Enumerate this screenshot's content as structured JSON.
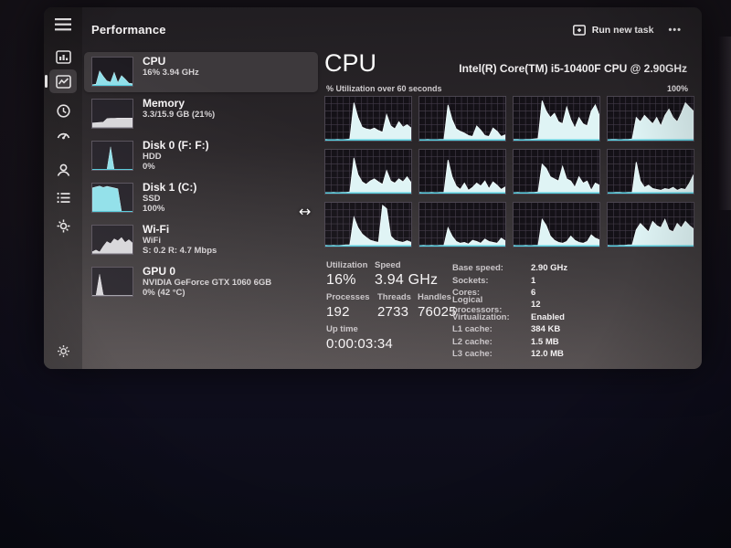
{
  "window": {
    "page_title": "Performance",
    "run_new_task_label": "Run new task",
    "more_label": "•••",
    "cursor_glyph": "↔"
  },
  "sidebar": {
    "items": [
      {
        "name": "menu",
        "icon": "hamburger-icon"
      },
      {
        "name": "processes",
        "icon": "processes-icon"
      },
      {
        "name": "performance",
        "icon": "performance-icon",
        "active": true
      },
      {
        "name": "app-history",
        "icon": "history-icon"
      },
      {
        "name": "startup-apps",
        "icon": "startup-icon"
      },
      {
        "name": "users",
        "icon": "users-icon"
      },
      {
        "name": "details",
        "icon": "details-icon"
      },
      {
        "name": "services",
        "icon": "services-icon"
      },
      {
        "name": "settings",
        "icon": "gear-icon"
      }
    ]
  },
  "perf_list": [
    {
      "title": "CPU",
      "line1": "16% 3.94 GHz",
      "line2": ""
    },
    {
      "title": "Memory",
      "line1": "3.3/15.9 GB (21%)",
      "line2": ""
    },
    {
      "title": "Disk 0 (F: F:)",
      "line1": "HDD",
      "line2": "0%"
    },
    {
      "title": "Disk 1 (C:)",
      "line1": "SSD",
      "line2": "100%"
    },
    {
      "title": "Wi-Fi",
      "line1": "WiFi",
      "line2": "S: 0.2 R: 4.7 Mbps"
    },
    {
      "title": "GPU 0",
      "line1": "NVIDIA GeForce GTX 1060 6GB",
      "line2": "0% (42 °C)"
    }
  ],
  "main": {
    "title": "CPU",
    "cpu_name": "Intel(R) Core(TM) i5-10400F CPU @ 2.90GHz",
    "graph_caption": "% Utilization over 60 seconds",
    "scale_label": "100%",
    "stats_left": [
      {
        "label": "Utilization",
        "value": "16%"
      },
      {
        "label": "Speed",
        "value": "3.94 GHz"
      },
      {
        "label": "Processes",
        "value": "192"
      },
      {
        "label": "Threads",
        "value": "2733"
      },
      {
        "label": "Handles",
        "value": "76025"
      },
      {
        "label": "Up time",
        "value": "0:00:03:34"
      }
    ],
    "stats_right": [
      {
        "label": "Base speed:",
        "value": "2.90 GHz"
      },
      {
        "label": "Sockets:",
        "value": "1"
      },
      {
        "label": "Cores:",
        "value": "6"
      },
      {
        "label": "Logical processors:",
        "value": "12"
      },
      {
        "label": "Virtualization:",
        "value": "Enabled"
      },
      {
        "label": "L1 cache:",
        "value": "384 KB"
      },
      {
        "label": "L2 cache:",
        "value": "1.5 MB"
      },
      {
        "label": "L3 cache:",
        "value": "12.0 MB"
      }
    ]
  },
  "chart_data": {
    "type": "area",
    "title": "% Utilization over 60 seconds",
    "ylim": [
      0,
      100
    ],
    "xrange_seconds": 60,
    "cores": [
      [
        3,
        2,
        2,
        3,
        2,
        3,
        4,
        90,
        55,
        32,
        28,
        26,
        30,
        24,
        20,
        62,
        35,
        28,
        45,
        32,
        38,
        30
      ],
      [
        2,
        2,
        3,
        2,
        2,
        3,
        3,
        85,
        50,
        28,
        22,
        18,
        12,
        10,
        35,
        25,
        12,
        10,
        30,
        22,
        10,
        14
      ],
      [
        3,
        3,
        2,
        3,
        3,
        4,
        5,
        95,
        70,
        55,
        65,
        45,
        40,
        80,
        50,
        30,
        55,
        40,
        35,
        70,
        85,
        60
      ],
      [
        2,
        3,
        3,
        2,
        3,
        3,
        4,
        55,
        45,
        60,
        50,
        40,
        55,
        35,
        60,
        75,
        55,
        45,
        65,
        90,
        80,
        70
      ],
      [
        2,
        2,
        3,
        2,
        3,
        3,
        4,
        85,
        45,
        28,
        22,
        30,
        35,
        28,
        22,
        55,
        30,
        25,
        35,
        28,
        40,
        26
      ],
      [
        3,
        2,
        2,
        3,
        2,
        3,
        3,
        80,
        40,
        18,
        10,
        25,
        8,
        15,
        25,
        18,
        30,
        12,
        28,
        20,
        10,
        16
      ],
      [
        2,
        3,
        2,
        2,
        3,
        3,
        4,
        70,
        60,
        40,
        35,
        30,
        65,
        35,
        30,
        15,
        40,
        25,
        30,
        8,
        25,
        20
      ],
      [
        2,
        2,
        3,
        3,
        2,
        3,
        3,
        75,
        30,
        15,
        20,
        12,
        10,
        8,
        12,
        10,
        15,
        8,
        12,
        10,
        25,
        45
      ],
      [
        3,
        2,
        3,
        2,
        3,
        4,
        4,
        70,
        45,
        30,
        22,
        15,
        12,
        10,
        98,
        90,
        25,
        15,
        12,
        10,
        14,
        10
      ],
      [
        2,
        3,
        2,
        3,
        2,
        3,
        3,
        45,
        25,
        12,
        8,
        10,
        6,
        15,
        12,
        8,
        18,
        12,
        10,
        8,
        20,
        14
      ],
      [
        3,
        2,
        2,
        3,
        2,
        3,
        3,
        65,
        50,
        25,
        15,
        10,
        8,
        12,
        25,
        15,
        10,
        8,
        12,
        28,
        20,
        16
      ],
      [
        3,
        2,
        2,
        3,
        3,
        4,
        4,
        40,
        55,
        45,
        35,
        60,
        50,
        45,
        65,
        40,
        35,
        55,
        45,
        60,
        50,
        42
      ]
    ],
    "sparks": {
      "cpu": [
        4,
        6,
        55,
        35,
        18,
        14,
        50,
        12,
        38,
        25,
        10,
        8
      ],
      "memory": [
        18,
        19,
        20,
        21,
        34,
        35,
        35,
        36,
        36,
        36,
        36,
        36
      ],
      "disk0": [
        0,
        0,
        0,
        0,
        1,
        85,
        2,
        0,
        0,
        0,
        0,
        0
      ],
      "disk1": [
        88,
        92,
        95,
        90,
        94,
        91,
        88,
        85,
        3,
        2,
        2,
        2
      ],
      "wifi": [
        8,
        14,
        7,
        28,
        45,
        38,
        55,
        48,
        60,
        42,
        52,
        40
      ],
      "gpu": [
        0,
        0,
        80,
        4,
        0,
        0,
        0,
        0,
        0,
        0,
        0,
        0
      ]
    }
  },
  "colors": {
    "accent_cyan": "#55cbdb",
    "graph_fill": "#dff4f5",
    "graph_bg": "#141117",
    "grid_line": "#413a47",
    "window_top": "#201d21",
    "window_bottom": "#544e4f"
  }
}
